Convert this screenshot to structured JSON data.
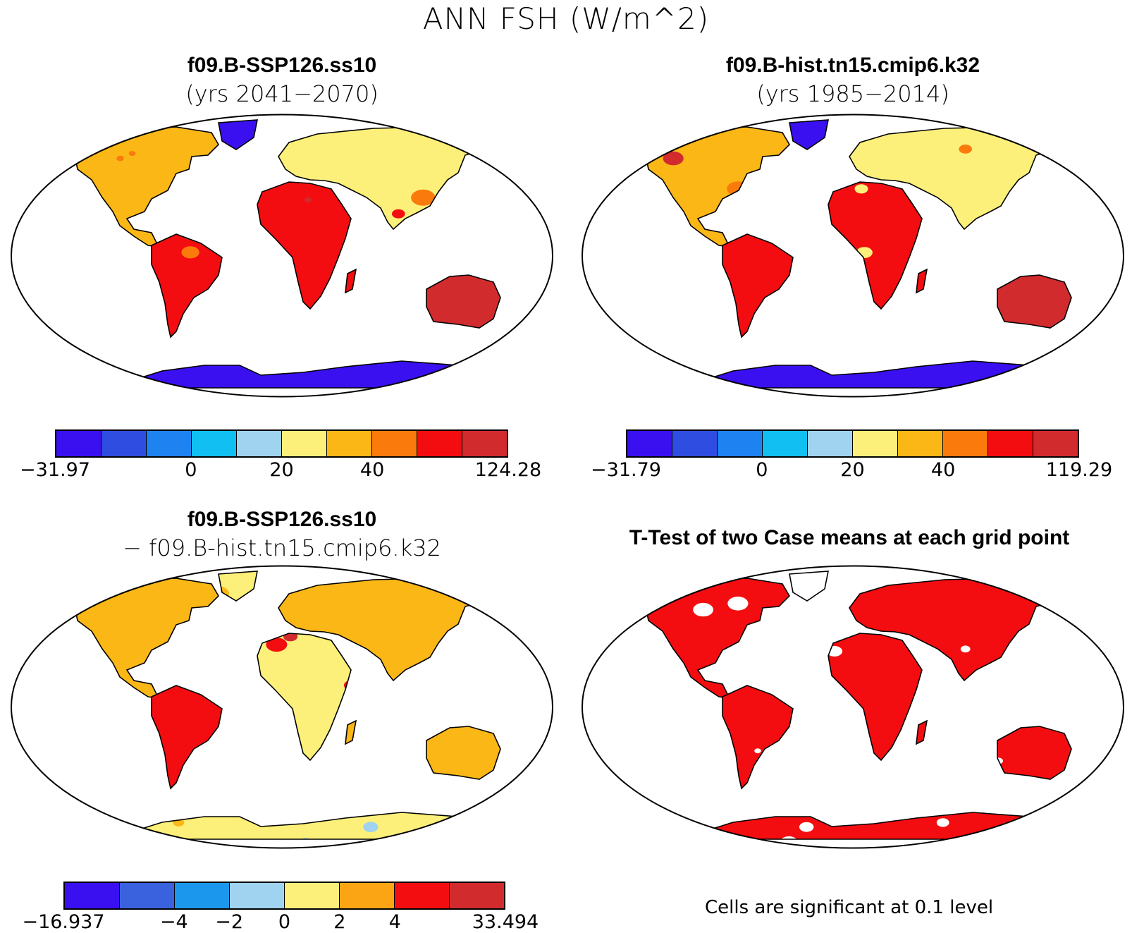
{
  "title": "ANN FSH (W/m^2)",
  "panels": [
    {
      "id": "p1",
      "title": "f09.B-SSP126.ss10",
      "subtitle": "(yrs 2041−2070)",
      "map_type": "case"
    },
    {
      "id": "p2",
      "title": "f09.B-hist.tn15.cmip6.k32",
      "subtitle": "(yrs 1985−2014)",
      "map_type": "case"
    },
    {
      "id": "p3",
      "title": "f09.B-SSP126.ss10",
      "subtitle": "− f09.B-hist.tn15.cmip6.k32",
      "map_type": "difference"
    },
    {
      "id": "p4",
      "title": "T-Test of two Case means at each grid point",
      "subtitle": "",
      "map_type": "significance"
    }
  ],
  "colorbars": [
    {
      "id": "cb1",
      "colors": [
        "#3b10f0",
        "#2f4de0",
        "#1e82f0",
        "#12bff2",
        "#9fd3ef",
        "#fdf07a",
        "#fbb716",
        "#fb7a0c",
        "#f40d10",
        "#d22b2e"
      ],
      "ticks": [
        {
          "label": "−31.97",
          "pos": 0.0
        },
        {
          "label": "0",
          "pos": 0.3
        },
        {
          "label": "20",
          "pos": 0.5
        },
        {
          "label": "40",
          "pos": 0.7
        },
        {
          "label": "124.28",
          "pos": 1.0
        }
      ]
    },
    {
      "id": "cb2",
      "colors": [
        "#3b10f0",
        "#2f4de0",
        "#1e82f0",
        "#12bff2",
        "#9fd3ef",
        "#fdf07a",
        "#fbb716",
        "#fb7a0c",
        "#f40d10",
        "#d22b2e"
      ],
      "ticks": [
        {
          "label": "−31.79",
          "pos": 0.0
        },
        {
          "label": "0",
          "pos": 0.3
        },
        {
          "label": "20",
          "pos": 0.5
        },
        {
          "label": "40",
          "pos": 0.7
        },
        {
          "label": "119.29",
          "pos": 1.0
        }
      ]
    },
    {
      "id": "cb3",
      "colors": [
        "#3b10f0",
        "#3a62de",
        "#1b97ee",
        "#9fd3ef",
        "#fdf07a",
        "#fba515",
        "#f40d10",
        "#d22b2e"
      ],
      "ticks": [
        {
          "label": "−16.937",
          "pos": 0.0
        },
        {
          "label": "−4",
          "pos": 0.25
        },
        {
          "label": "−2",
          "pos": 0.375
        },
        {
          "label": "0",
          "pos": 0.5
        },
        {
          "label": "2",
          "pos": 0.625
        },
        {
          "label": "4",
          "pos": 0.75
        },
        {
          "label": "33.494",
          "pos": 1.0
        }
      ]
    }
  ],
  "significance_note": "Cells are significant at 0.1 level",
  "palettes": {
    "case": {
      "cold": "#3b10f0",
      "polar": "#5fb6f0",
      "mid": "#fdf07a",
      "warm": "#fbb716",
      "hot": "#f40d10",
      "hotter": "#d22b2e",
      "pale": "#9fd3ef"
    },
    "difference": {
      "base": "#fdf07a",
      "warm": "#fbb716",
      "hot": "#f40d10",
      "hotter": "#d22b2e",
      "neg": "#9fd3ef",
      "neg2": "#1b97ee"
    },
    "significance": {
      "sig": "#f40d10",
      "not_sig": "#ffffff"
    }
  }
}
